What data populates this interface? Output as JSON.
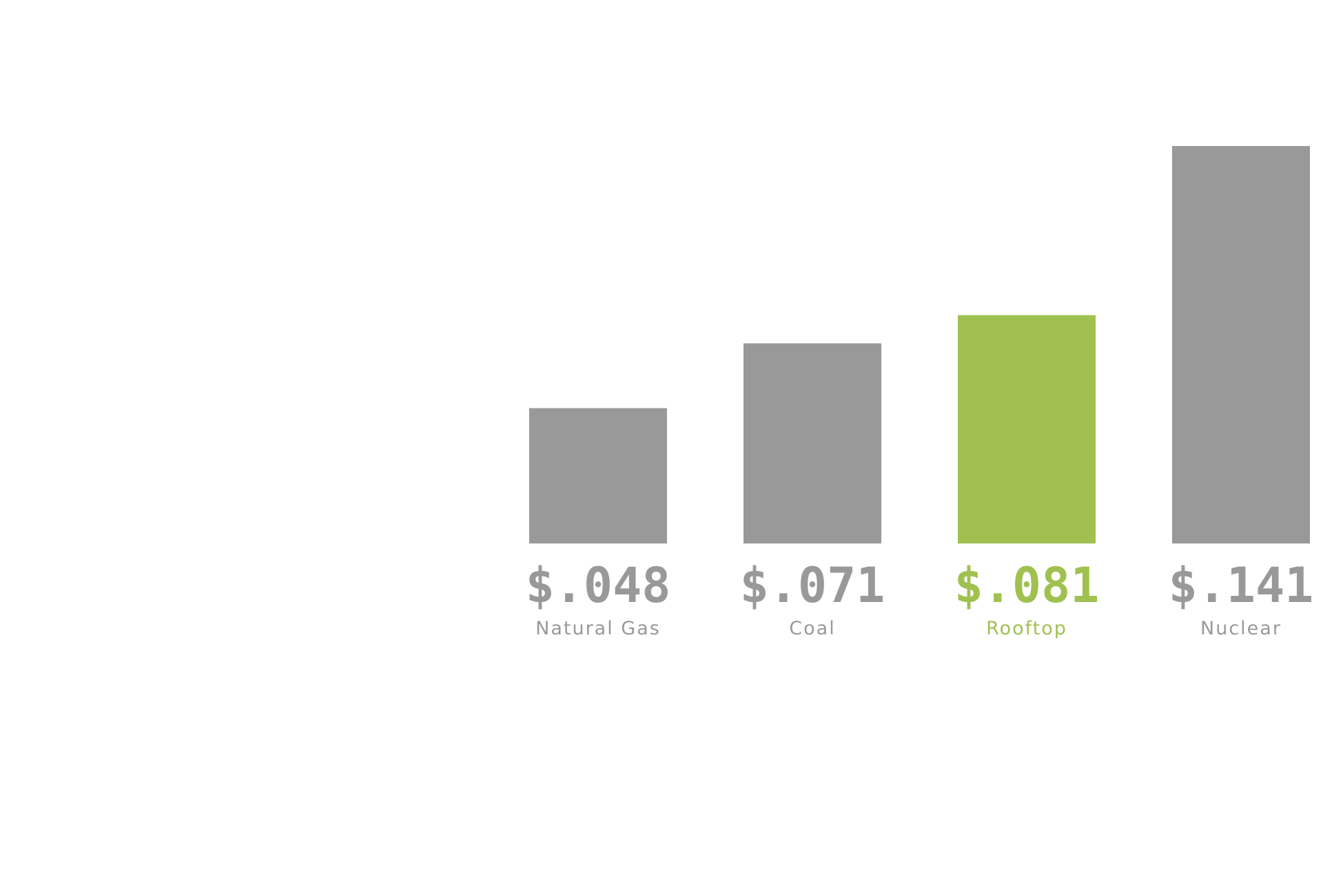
{
  "chart_data": {
    "type": "bar",
    "title": "",
    "xlabel": "",
    "ylabel": "",
    "ylim": [
      0,
      0.141
    ],
    "grid": false,
    "categories": [
      "Natural Gas",
      "Coal",
      "Rooftop",
      "Nuclear"
    ],
    "values": [
      0.048,
      0.071,
      0.081,
      0.141
    ],
    "value_labels": [
      "$.048",
      "$.071",
      "$.081",
      "$.141"
    ],
    "highlight_category": "Rooftop",
    "colors": {
      "default": "#999999",
      "highlight": "#a0c150",
      "label_default": "#999999",
      "label_highlight": "#a0c150"
    }
  }
}
